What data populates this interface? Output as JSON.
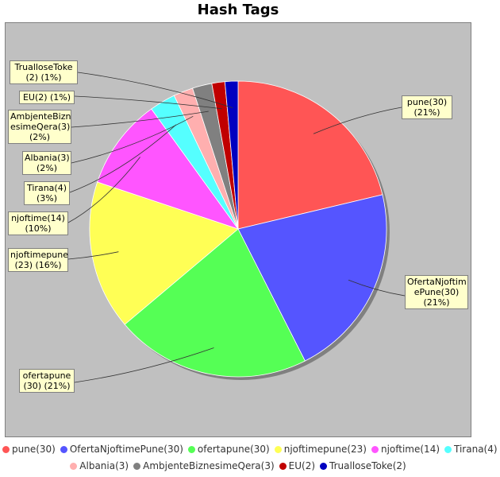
{
  "chart_data": {
    "type": "pie",
    "title": "Hash Tags",
    "slices": [
      {
        "name": "pune",
        "value": 30,
        "label": "pune(30)\n(21%)",
        "color": "#ff5555"
      },
      {
        "name": "OfertaNjoftimePune",
        "value": 30,
        "label": "OfertaNjoftim\nePune(30)\n(21%)",
        "color": "#5555ff"
      },
      {
        "name": "ofertapune",
        "value": 30,
        "label": "ofertapune\n(30) (21%)",
        "color": "#55ff55"
      },
      {
        "name": "njoftimepune",
        "value": 23,
        "label": "njoftimepune\n(23) (16%)",
        "color": "#ffff55"
      },
      {
        "name": "njoftime",
        "value": 14,
        "label": "njoftime(14)\n(10%)",
        "color": "#ff55ff"
      },
      {
        "name": "Tirana",
        "value": 4,
        "label": "Tirana(4)\n(3%)",
        "color": "#55ffff"
      },
      {
        "name": "Albania",
        "value": 3,
        "label": "Albania(3)\n(2%)",
        "color": "#ffafaf"
      },
      {
        "name": "AmbjenteBiznesimeQera",
        "value": 3,
        "label": "AmbjenteBizn\nesimeQera(3)\n(2%)",
        "color": "#808080"
      },
      {
        "name": "EU",
        "value": 2,
        "label": "EU(2) (1%)",
        "color": "#c00000"
      },
      {
        "name": "TrualloseToke",
        "value": 2,
        "label": "TrualloseToke\n(2) (1%)",
        "color": "#0000c0"
      }
    ],
    "legend": [
      "pune(30)",
      "OfertaNjoftimePune(30)",
      "ofertapune(30)",
      "njoftimepune(23)",
      "njoftime(14)",
      "Tirana(4)",
      "Albania(3)",
      "AmbjenteBiznesimeQera(3)",
      "EU(2)",
      "TrualloseToke(2)"
    ],
    "legend_position": "bottom"
  }
}
